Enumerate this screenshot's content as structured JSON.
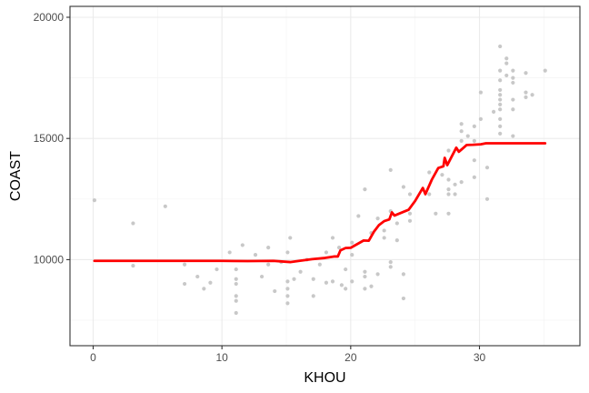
{
  "chart_data": {
    "type": "scatter",
    "xlabel": "KHOU",
    "ylabel": "COAST",
    "xlim": [
      -1.8,
      37.8
    ],
    "ylim": [
      6450,
      20450
    ],
    "x_ticks": [
      0,
      10,
      20,
      30
    ],
    "x_tick_labels": [
      "0",
      "10",
      "20",
      "30"
    ],
    "y_ticks": [
      10000,
      15000,
      20000
    ],
    "y_tick_labels": [
      "10000",
      "15000",
      "20000"
    ],
    "grid": true,
    "legend": "none",
    "colors": {
      "points": "#c8c8c8",
      "line": "#ff0000",
      "grid_major": "#ebebeb",
      "grid_minor": "#f4f4f4",
      "border": "#333333"
    },
    "series": [
      {
        "type": "scatter",
        "points": [
          [
            0.1,
            12450
          ],
          [
            3.1,
            11500
          ],
          [
            3.1,
            9750
          ],
          [
            5.6,
            12200
          ],
          [
            7.1,
            9800
          ],
          [
            7.1,
            9000
          ],
          [
            8.1,
            9300
          ],
          [
            8.6,
            8800
          ],
          [
            9.1,
            9050
          ],
          [
            9.6,
            9600
          ],
          [
            10.6,
            10300
          ],
          [
            11.1,
            9600
          ],
          [
            11.1,
            9200
          ],
          [
            11.1,
            9000
          ],
          [
            11.1,
            8500
          ],
          [
            11.1,
            8300
          ],
          [
            11.1,
            7800
          ],
          [
            11.6,
            10600
          ],
          [
            12.6,
            10200
          ],
          [
            13.1,
            9300
          ],
          [
            13.6,
            9800
          ],
          [
            13.6,
            10500
          ],
          [
            14.1,
            8700
          ],
          [
            14.6,
            9900
          ],
          [
            15.1,
            10300
          ],
          [
            15.1,
            9100
          ],
          [
            15.1,
            8800
          ],
          [
            15.1,
            8500
          ],
          [
            15.1,
            8200
          ],
          [
            15.3,
            10900
          ],
          [
            15.6,
            9200
          ],
          [
            16.1,
            9500
          ],
          [
            16.6,
            10000
          ],
          [
            17.1,
            8500
          ],
          [
            17.1,
            9200
          ],
          [
            17.6,
            9800
          ],
          [
            18.1,
            9050
          ],
          [
            18.1,
            10300
          ],
          [
            18.6,
            10900
          ],
          [
            18.6,
            9100
          ],
          [
            19.1,
            10500
          ],
          [
            19.3,
            8950
          ],
          [
            19.6,
            8800
          ],
          [
            19.6,
            9600
          ],
          [
            20.1,
            10700
          ],
          [
            20.1,
            10200
          ],
          [
            20.1,
            9100
          ],
          [
            20.6,
            11800
          ],
          [
            21.1,
            12900
          ],
          [
            21.1,
            9500
          ],
          [
            21.1,
            9300
          ],
          [
            21.1,
            8800
          ],
          [
            21.6,
            11100
          ],
          [
            21.6,
            8900
          ],
          [
            22.1,
            11700
          ],
          [
            22.1,
            9400
          ],
          [
            22.6,
            11200
          ],
          [
            22.6,
            10900
          ],
          [
            23.1,
            13700
          ],
          [
            23.1,
            12000
          ],
          [
            23.1,
            9900
          ],
          [
            23.1,
            9700
          ],
          [
            23.6,
            11500
          ],
          [
            23.6,
            10800
          ],
          [
            24.1,
            13000
          ],
          [
            24.1,
            9400
          ],
          [
            24.1,
            8400
          ],
          [
            24.6,
            12700
          ],
          [
            24.6,
            11900
          ],
          [
            24.6,
            11600
          ],
          [
            26.1,
            13600
          ],
          [
            26.1,
            12700
          ],
          [
            26.6,
            11900
          ],
          [
            27.1,
            13500
          ],
          [
            27.6,
            14500
          ],
          [
            27.6,
            13300
          ],
          [
            27.6,
            12900
          ],
          [
            27.6,
            12700
          ],
          [
            27.6,
            11900
          ],
          [
            28.1,
            13100
          ],
          [
            28.1,
            12700
          ],
          [
            28.6,
            15600
          ],
          [
            28.6,
            15300
          ],
          [
            28.6,
            14900
          ],
          [
            28.6,
            13200
          ],
          [
            29.1,
            15100
          ],
          [
            29.6,
            15500
          ],
          [
            29.6,
            14900
          ],
          [
            29.6,
            14100
          ],
          [
            29.6,
            13400
          ],
          [
            30.1,
            16900
          ],
          [
            30.1,
            15800
          ],
          [
            30.6,
            12500
          ],
          [
            30.6,
            13800
          ],
          [
            31.1,
            16100
          ],
          [
            31.6,
            18800
          ],
          [
            31.6,
            17800
          ],
          [
            31.6,
            17400
          ],
          [
            31.6,
            17000
          ],
          [
            31.6,
            16800
          ],
          [
            31.6,
            16600
          ],
          [
            31.6,
            16400
          ],
          [
            31.6,
            16200
          ],
          [
            31.6,
            15800
          ],
          [
            31.6,
            15500
          ],
          [
            31.6,
            15200
          ],
          [
            32.1,
            18300
          ],
          [
            32.1,
            18100
          ],
          [
            32.1,
            17600
          ],
          [
            32.6,
            17800
          ],
          [
            32.6,
            17500
          ],
          [
            32.6,
            17300
          ],
          [
            32.6,
            16600
          ],
          [
            32.6,
            16200
          ],
          [
            32.6,
            15100
          ],
          [
            33.6,
            17700
          ],
          [
            33.6,
            16900
          ],
          [
            33.6,
            16700
          ],
          [
            34.1,
            16800
          ],
          [
            35.1,
            17800
          ]
        ]
      },
      {
        "type": "line",
        "points": [
          [
            0.1,
            9950
          ],
          [
            5.0,
            9950
          ],
          [
            10.0,
            9950
          ],
          [
            12.0,
            9940
          ],
          [
            14.0,
            9950
          ],
          [
            15.3,
            9900
          ],
          [
            16.0,
            9950
          ],
          [
            17.0,
            10020
          ],
          [
            18.0,
            10070
          ],
          [
            18.7,
            10130
          ],
          [
            19.0,
            10130
          ],
          [
            19.2,
            10380
          ],
          [
            19.6,
            10480
          ],
          [
            20.0,
            10490
          ],
          [
            20.5,
            10640
          ],
          [
            21.0,
            10790
          ],
          [
            21.4,
            10780
          ],
          [
            21.8,
            11150
          ],
          [
            22.2,
            11430
          ],
          [
            22.6,
            11590
          ],
          [
            23.0,
            11660
          ],
          [
            23.2,
            11950
          ],
          [
            23.4,
            11820
          ],
          [
            24.0,
            11950
          ],
          [
            24.5,
            12060
          ],
          [
            25.0,
            12420
          ],
          [
            25.6,
            12960
          ],
          [
            25.8,
            12700
          ],
          [
            26.3,
            13300
          ],
          [
            26.8,
            13780
          ],
          [
            27.2,
            13850
          ],
          [
            27.3,
            14200
          ],
          [
            27.5,
            13900
          ],
          [
            28.2,
            14620
          ],
          [
            28.4,
            14450
          ],
          [
            29.0,
            14730
          ],
          [
            29.5,
            14740
          ],
          [
            30.1,
            14760
          ],
          [
            30.5,
            14800
          ],
          [
            32.0,
            14800
          ],
          [
            35.1,
            14800
          ]
        ]
      }
    ]
  }
}
